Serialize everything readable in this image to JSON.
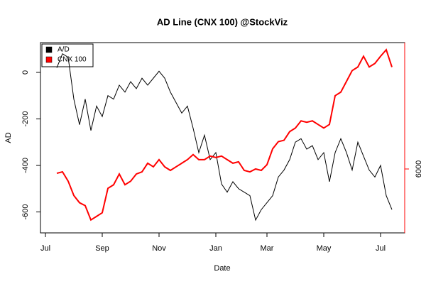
{
  "chart_data": {
    "type": "line",
    "title": "AD Line (CNX 100) @StockViz",
    "xlabel": "Date",
    "ylabel": "AD",
    "categories": [
      "Jul",
      null,
      null,
      null,
      null,
      null,
      null,
      null,
      null,
      null,
      "Sep",
      null,
      null,
      null,
      null,
      null,
      null,
      null,
      null,
      null,
      "Nov",
      null,
      null,
      null,
      null,
      null,
      null,
      null,
      null,
      null,
      "Jan",
      null,
      null,
      null,
      null,
      null,
      null,
      null,
      null,
      "Mar",
      null,
      null,
      null,
      null,
      null,
      null,
      null,
      null,
      null,
      "May",
      null,
      null,
      null,
      null,
      null,
      null,
      null,
      null,
      null,
      "Jul",
      null,
      null
    ],
    "series": [
      {
        "name": "A/D",
        "color": "#000000",
        "values": [
          null,
          null,
          20,
          80,
          65,
          -115,
          -225,
          -115,
          -250,
          -145,
          -190,
          -100,
          -115,
          -55,
          -85,
          -40,
          -70,
          -25,
          -55,
          -25,
          5,
          -25,
          -85,
          -130,
          -175,
          -145,
          -240,
          -345,
          -270,
          -375,
          -345,
          -480,
          -515,
          -470,
          -500,
          -515,
          -530,
          -635,
          -590,
          -560,
          -530,
          -450,
          -420,
          -375,
          -300,
          -285,
          -330,
          -315,
          -375,
          -345,
          -470,
          -345,
          -285,
          -345,
          -420,
          -300,
          -360,
          -420,
          -450,
          -400,
          -530,
          -590
        ]
      },
      {
        "name": "CNX 100",
        "color": "#ff0000",
        "axis": "y2",
        "values": [
          null,
          null,
          5940,
          5960,
          5830,
          5630,
          5530,
          5490,
          5290,
          5340,
          5390,
          5730,
          5780,
          5930,
          5780,
          5830,
          5930,
          5960,
          6080,
          6030,
          6130,
          6030,
          5980,
          6030,
          6080,
          6130,
          6200,
          6130,
          6130,
          6180,
          6160,
          6180,
          6130,
          6080,
          6100,
          5980,
          5960,
          6000,
          5980,
          6060,
          6280,
          6380,
          6400,
          6520,
          6570,
          6670,
          6650,
          6670,
          6620,
          6570,
          6620,
          7020,
          7070,
          7220,
          7370,
          7420,
          7570,
          7420,
          7470,
          7570,
          7660,
          7420
        ]
      }
    ],
    "ylim": [
      -690,
      128
    ],
    "yticks": [
      -600,
      -400,
      -200,
      0
    ],
    "y2lim": [
      5110,
      7760
    ],
    "y2ticks": [
      6000
    ],
    "legend": "upper left"
  }
}
